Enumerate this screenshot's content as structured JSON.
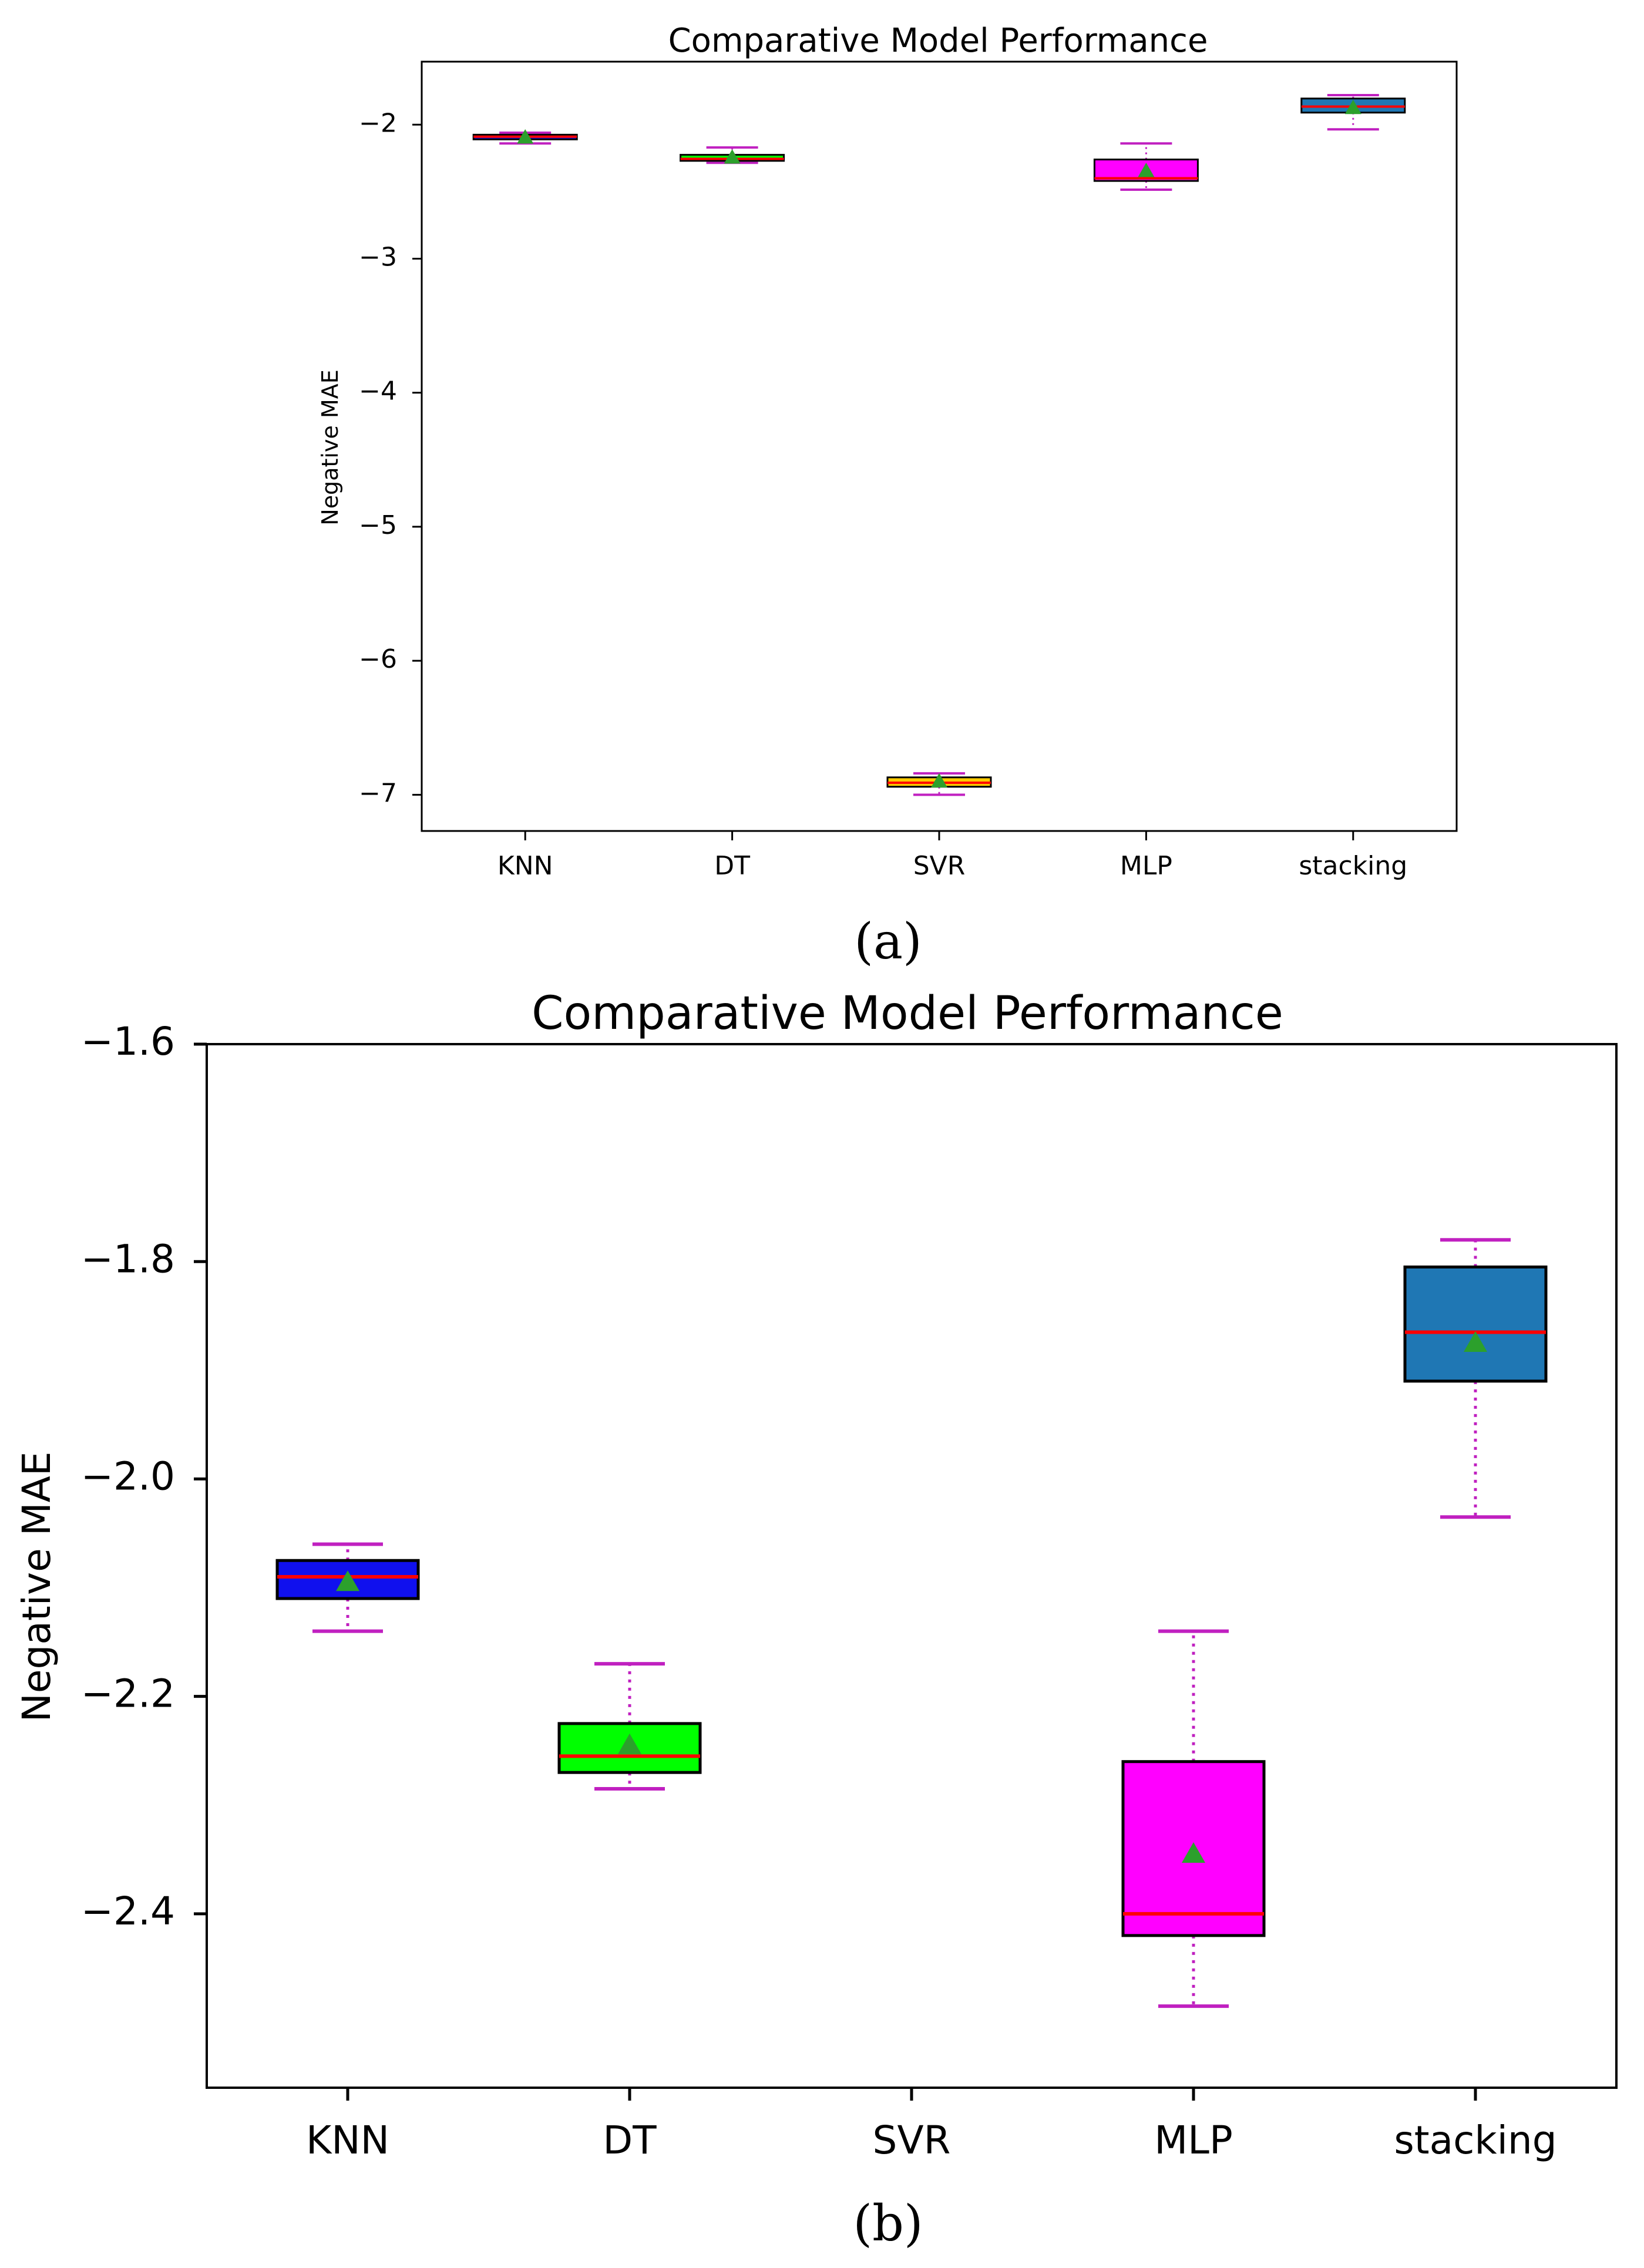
{
  "captions": {
    "a": "(a)",
    "b": "(b)"
  },
  "colors": {
    "median": "#ff0000",
    "whisker": "#c020c0",
    "mean": "#2ca02c",
    "edge": "#000000"
  },
  "chart_data": [
    {
      "type": "box",
      "panel": "a",
      "title": "Comparative Model Performance",
      "xlabel": "",
      "ylabel": "Negative MAE",
      "ylim": [
        -7.27,
        -1.53
      ],
      "yticks": [
        -2,
        -3,
        -4,
        -5,
        -6,
        -7
      ],
      "ytick_labels": [
        "−2",
        "−3",
        "−4",
        "−5",
        "−6",
        "−7"
      ],
      "categories": [
        "KNN",
        "DT",
        "SVR",
        "MLP",
        "stacking"
      ],
      "boxes": [
        {
          "label": "KNN",
          "color": "#1010ee",
          "whislo": -2.14,
          "q1": -2.11,
          "med": -2.09,
          "q3": -2.075,
          "whishi": -2.06,
          "mean": -2.095,
          "whisker_style": "dotted"
        },
        {
          "label": "DT",
          "color": "#00ff00",
          "whislo": -2.285,
          "q1": -2.27,
          "med": -2.255,
          "q3": -2.225,
          "whishi": -2.17,
          "mean": -2.245,
          "whisker_style": "dotted"
        },
        {
          "label": "SVR",
          "color": "#ffcc00",
          "whislo": -7.0,
          "q1": -6.94,
          "med": -6.91,
          "q3": -6.87,
          "whishi": -6.84,
          "mean": -6.9,
          "whisker_style": "dotted"
        },
        {
          "label": "MLP",
          "color": "#ff00ff",
          "whislo": -2.485,
          "q1": -2.42,
          "med": -2.4,
          "q3": -2.26,
          "whishi": -2.14,
          "mean": -2.345,
          "whisker_style": "dotted"
        },
        {
          "label": "stacking",
          "color": "#1f77b4",
          "whislo": -2.035,
          "q1": -1.91,
          "med": -1.865,
          "q3": -1.805,
          "whishi": -1.78,
          "mean": -1.875,
          "whisker_style": "dotted"
        }
      ]
    },
    {
      "type": "box",
      "panel": "b",
      "title": "Comparative Model Performance",
      "xlabel": "",
      "ylabel": "Negative MAE",
      "ylim": [
        -2.56,
        -1.6
      ],
      "yticks": [
        -1.6,
        -1.8,
        -2.0,
        -2.2,
        -2.4
      ],
      "ytick_labels": [
        "−1.6",
        "−1.8",
        "−2.0",
        "−2.2",
        "−2.4"
      ],
      "categories": [
        "KNN",
        "DT",
        "SVR",
        "MLP",
        "stacking"
      ],
      "boxes": [
        {
          "label": "KNN",
          "color": "#1010ee",
          "whislo": -2.14,
          "q1": -2.11,
          "med": -2.09,
          "q3": -2.075,
          "whishi": -2.06,
          "mean": -2.095,
          "whisker_style": "dotted"
        },
        {
          "label": "DT",
          "color": "#00ff00",
          "whislo": -2.285,
          "q1": -2.27,
          "med": -2.255,
          "q3": -2.225,
          "whishi": -2.17,
          "mean": -2.245,
          "whisker_style": "dotted"
        },
        {
          "label": "MLP",
          "color": "#ff00ff",
          "whislo": -2.485,
          "q1": -2.42,
          "med": -2.4,
          "q3": -2.26,
          "whishi": -2.14,
          "mean": -2.345,
          "whisker_style": "dotted"
        },
        {
          "label": "stacking",
          "color": "#1f77b4",
          "whislo": -2.035,
          "q1": -1.91,
          "med": -1.865,
          "q3": -1.805,
          "whishi": -1.78,
          "mean": -1.875,
          "whisker_style": "dotted"
        }
      ]
    }
  ]
}
